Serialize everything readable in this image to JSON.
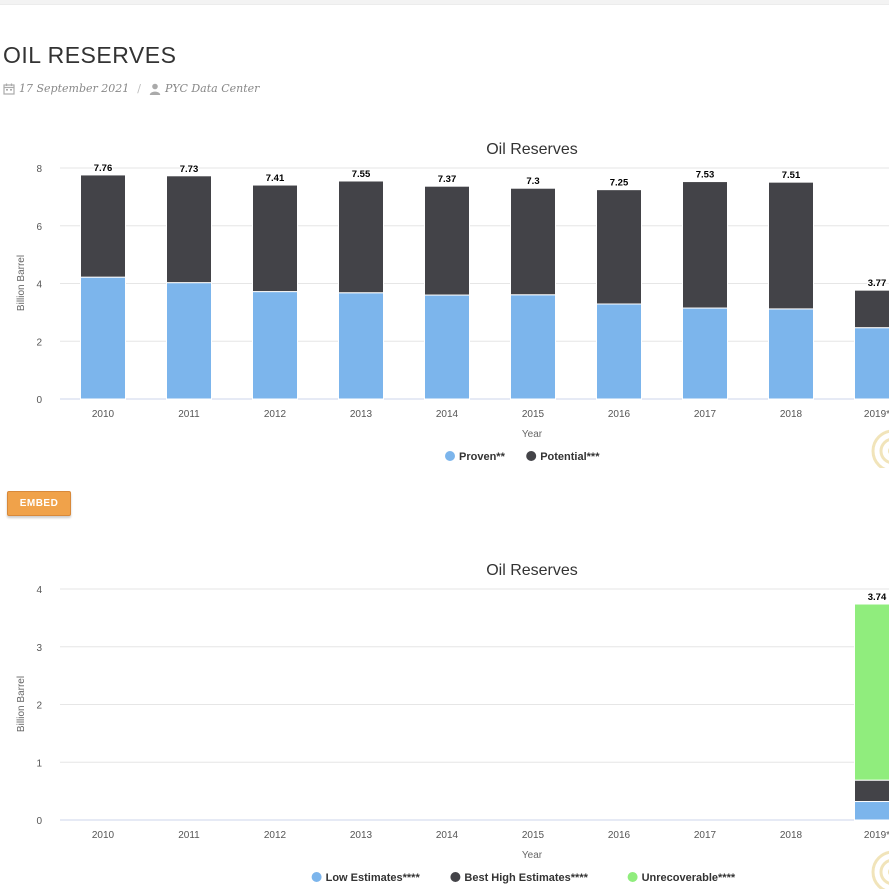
{
  "page": {
    "title": "OIL RESERVES",
    "date": "17 September 2021",
    "author": "PYC Data Center",
    "embed_label": "EMBED"
  },
  "chart_data": [
    {
      "type": "bar",
      "stacked": true,
      "title": "Oil Reserves",
      "xlabel": "Year",
      "ylabel": "Billion Barrel",
      "ylim": [
        0,
        8
      ],
      "yticks": [
        0,
        2,
        4,
        6,
        8
      ],
      "categories": [
        "2010",
        "2011",
        "2012",
        "2013",
        "2014",
        "2015",
        "2016",
        "2017",
        "2018",
        "2019*"
      ],
      "category_labels": [
        "2010",
        "2011",
        "2012",
        "2013",
        "2014",
        "2015",
        "2016",
        "2017",
        "2018",
        "2019*"
      ],
      "series": [
        {
          "name": "Proven**",
          "color": "#7cb5ec",
          "values": [
            4.22,
            4.03,
            3.72,
            3.68,
            3.6,
            3.61,
            3.29,
            3.15,
            3.12,
            2.47
          ]
        },
        {
          "name": "Potential***",
          "color": "#434348",
          "values": [
            3.54,
            3.7,
            3.69,
            3.87,
            3.77,
            3.69,
            3.96,
            4.38,
            4.39,
            1.3
          ]
        }
      ],
      "totals": [
        "7.76",
        "7.73",
        "7.41",
        "7.55",
        "7.37",
        "7.3",
        "7.25",
        "7.53",
        "7.51",
        "3.77"
      ],
      "legend": "bottom-center"
    },
    {
      "type": "bar",
      "stacked": true,
      "title": "Oil Reserves",
      "xlabel": "Year",
      "ylabel": "Billion Barrel",
      "ylim": [
        0,
        4
      ],
      "yticks": [
        0,
        1,
        2,
        3,
        4
      ],
      "categories": [
        "2010",
        "2011",
        "2012",
        "2013",
        "2014",
        "2015",
        "2016",
        "2017",
        "2018",
        "2019*"
      ],
      "category_labels": [
        "2010",
        "2011",
        "2012",
        "2013",
        "2014",
        "2015",
        "2016",
        "2017",
        "2018",
        "2019*"
      ],
      "series": [
        {
          "name": "Low Estimates****",
          "color": "#7cb5ec",
          "values": [
            0,
            0,
            0,
            0,
            0,
            0,
            0,
            0,
            0,
            0.32
          ]
        },
        {
          "name": "Best High Estimates****",
          "color": "#434348",
          "values": [
            0,
            0,
            0,
            0,
            0,
            0,
            0,
            0,
            0,
            0.37
          ]
        },
        {
          "name": "Unrecoverable****",
          "color": "#90ed7d",
          "values": [
            0,
            0,
            0,
            0,
            0,
            0,
            0,
            0,
            0,
            3.05
          ]
        }
      ],
      "totals": [
        "",
        "",
        "",
        "",
        "",
        "",
        "",
        "",
        "",
        "3.74"
      ],
      "legend": "bottom-center"
    }
  ]
}
